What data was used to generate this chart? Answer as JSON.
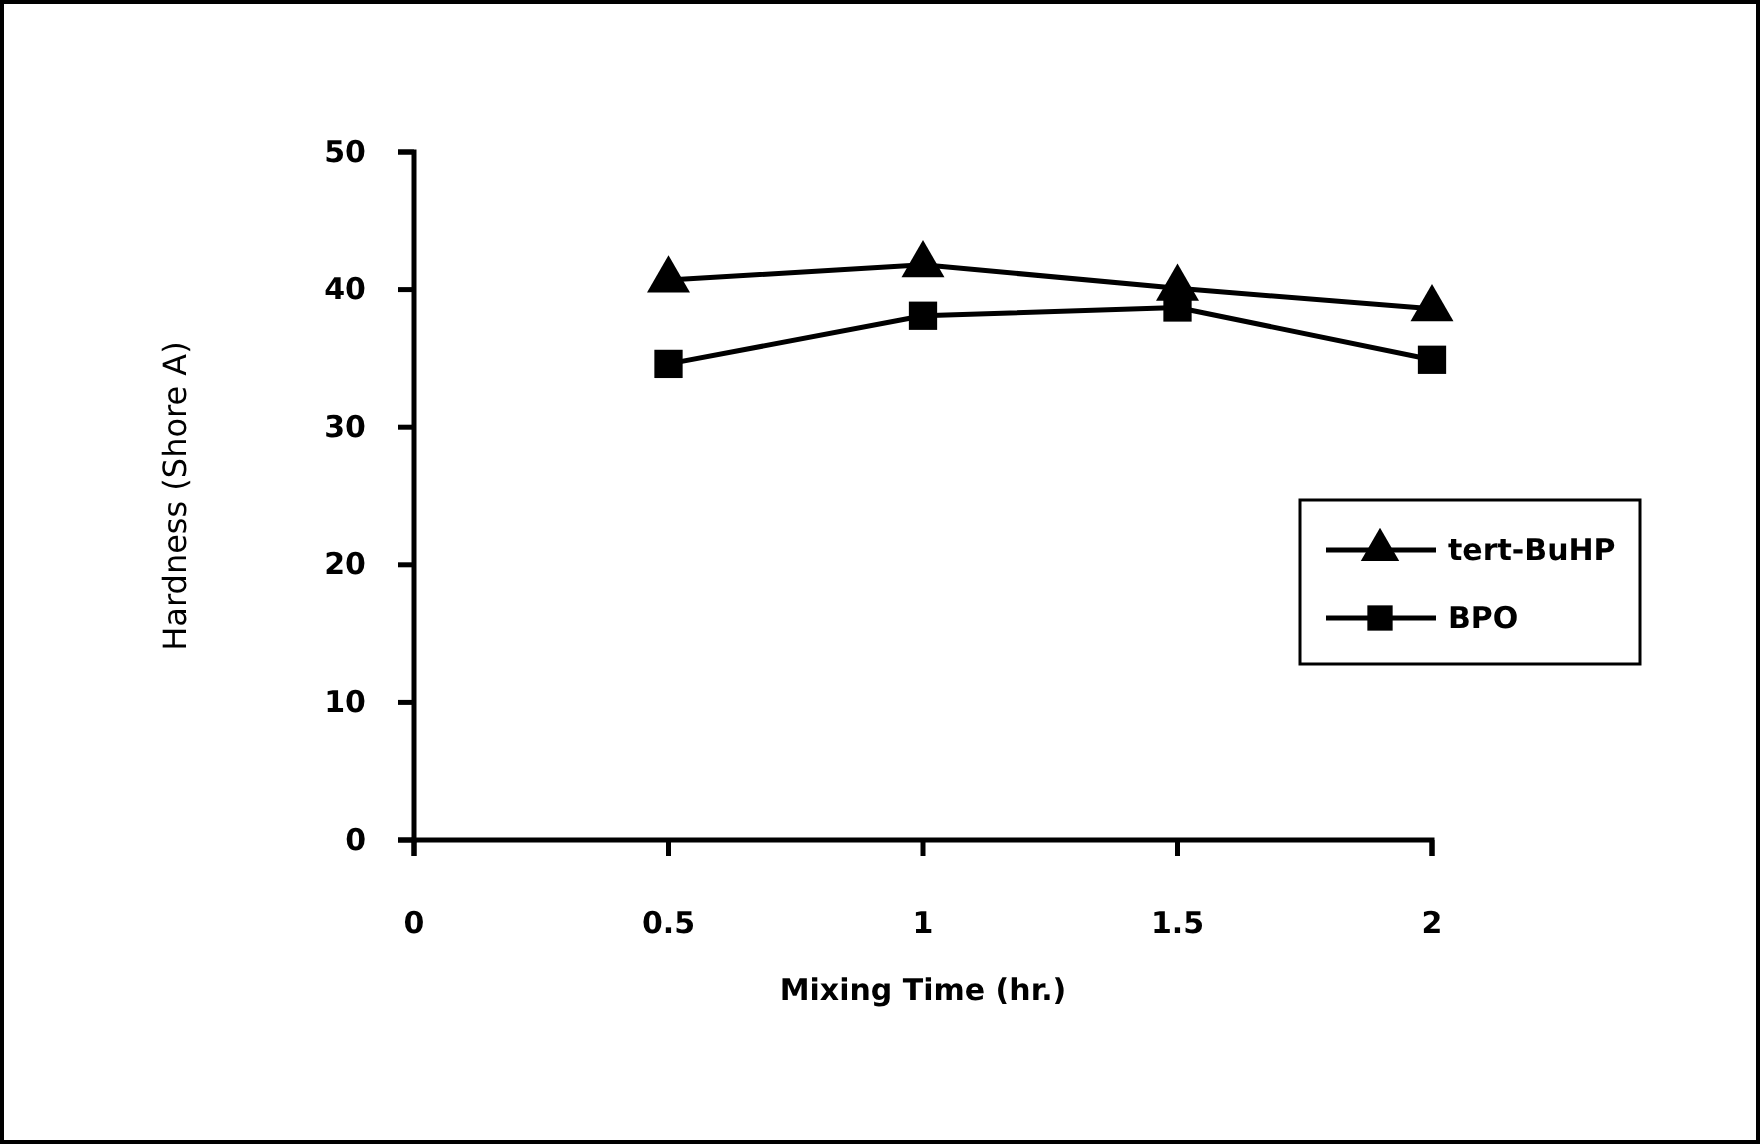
{
  "chart_data": {
    "type": "line",
    "xlabel": "Mixing Time (hr.)",
    "ylabel": "Hardness (Shore A)",
    "x": [
      0.5,
      1,
      1.5,
      2
    ],
    "series": [
      {
        "name": "tert-BuHP",
        "color": "#000000",
        "marker": "triangle",
        "values": [
          40.7,
          41.8,
          40.1,
          38.6
        ]
      },
      {
        "name": "BPO",
        "color": "#000000",
        "marker": "square",
        "values": [
          34.6,
          38.1,
          38.7,
          34.9
        ]
      }
    ],
    "xlim": [
      0,
      2
    ],
    "xticks": [
      0,
      0.5,
      1,
      1.5,
      2
    ],
    "ylim": [
      0,
      50
    ],
    "yticks": [
      0,
      10,
      20,
      30,
      40,
      50
    ],
    "grid": false,
    "legend": "right",
    "line_style": "solid"
  }
}
